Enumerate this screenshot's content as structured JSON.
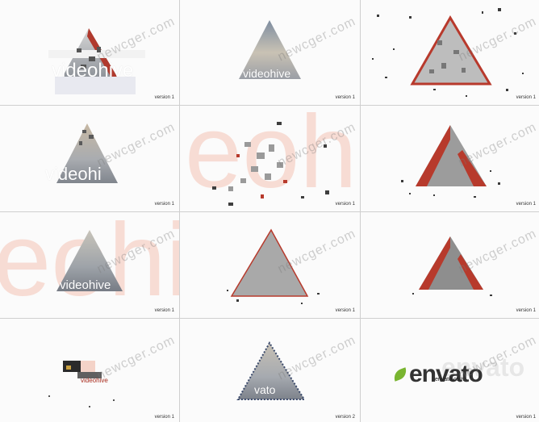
{
  "watermark": "newcger.com",
  "cells": [
    {
      "version": "version 1",
      "text": "videohive",
      "big": ""
    },
    {
      "version": "version 1",
      "text": "videohive",
      "big": ""
    },
    {
      "version": "version 1",
      "text": "",
      "big": ""
    },
    {
      "version": "version 1",
      "text": "videohi",
      "big": ""
    },
    {
      "version": "version 1",
      "text": "",
      "big": "eoh"
    },
    {
      "version": "version 1",
      "text": "",
      "big": ""
    },
    {
      "version": "version 1",
      "text": "videohive",
      "big": "eohi"
    },
    {
      "version": "version 1",
      "text": "",
      "big": ""
    },
    {
      "version": "version 1",
      "text": "",
      "big": ""
    },
    {
      "version": "version 1",
      "text": "videohive",
      "big": ""
    },
    {
      "version": "version 2",
      "text": "vato",
      "big": ""
    },
    {
      "version": "version 1",
      "text": "envato",
      "big": "",
      "url": "envato.com"
    }
  ],
  "colors": {
    "accent_red": "#c0392b",
    "envato_green": "#79b530",
    "grid_line": "#cfcfcf"
  }
}
